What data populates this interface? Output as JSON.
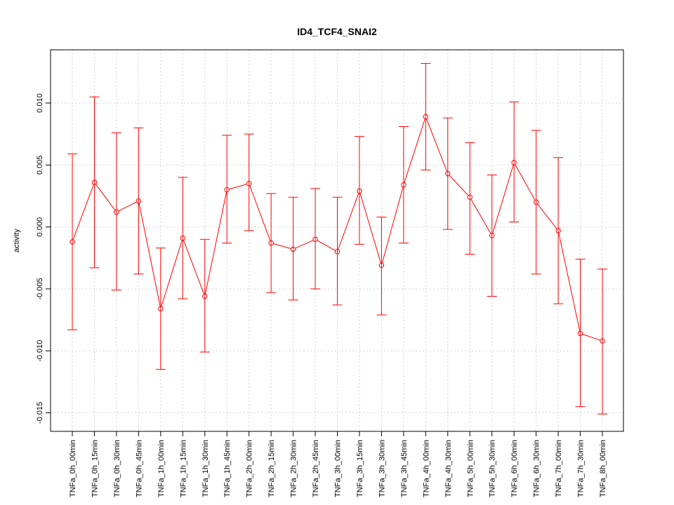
{
  "chart_data": {
    "type": "line",
    "title": "ID4_TCF4_SNAI2",
    "xlabel": "",
    "ylabel": "activity",
    "ylim": [
      -0.0165,
      0.0143
    ],
    "grid": true,
    "legend": "none",
    "colors": {
      "series": "#ff0000",
      "grid": "#d3d3d3",
      "frame": "#000000"
    },
    "y_ticks": [
      -0.015,
      -0.01,
      -0.005,
      0.0,
      0.005,
      0.01
    ],
    "y_tick_labels": [
      "-0.015",
      "-0.010",
      "-0.005",
      "0.000",
      "0.005",
      "0.010"
    ],
    "categories": [
      "TNFa_0h_00min",
      "TNFa_0h_15min",
      "TNFa_0h_30min",
      "TNFa_0h_45min",
      "TNFa_1h_00min",
      "TNFa_1h_15min",
      "TNFa_1h_30min",
      "TNFa_1h_45min",
      "TNFa_2h_00min",
      "TNFa_2h_15min",
      "TNFa_2h_30min",
      "TNFa_2h_45min",
      "TNFa_3h_00min",
      "TNFa_3h_15min",
      "TNFa_3h_30min",
      "TNFa_3h_45min",
      "TNFa_4h_00min",
      "TNFa_4h_30min",
      "TNFa_5h_00min",
      "TNFa_5h_30min",
      "TNFa_6h_00min",
      "TNFa_6h_30min",
      "TNFa_7h_00min",
      "TNFa_7h_30min",
      "TNFa_8h_00min"
    ],
    "series": [
      {
        "values": [
          -0.0012,
          0.0036,
          0.0012,
          0.0021,
          -0.0066,
          -0.0009,
          -0.0056,
          0.003,
          0.0035,
          -0.0013,
          -0.0018,
          -0.001,
          -0.002,
          0.0029,
          -0.0031,
          0.0034,
          0.0089,
          0.0043,
          0.0024,
          -0.0007,
          0.0052,
          0.002,
          -0.0003,
          -0.0086,
          -0.0092
        ],
        "upper": [
          0.0059,
          0.0105,
          0.0076,
          0.008,
          -0.0017,
          0.004,
          -0.001,
          0.0074,
          0.0075,
          0.0027,
          0.0024,
          0.0031,
          0.0024,
          0.0073,
          0.0008,
          0.0081,
          0.0132,
          0.0088,
          0.0068,
          0.0042,
          0.0101,
          0.0078,
          0.0056,
          -0.0026,
          -0.0034
        ],
        "lower": [
          -0.0083,
          -0.0033,
          -0.0051,
          -0.0038,
          -0.0115,
          -0.0058,
          -0.0101,
          -0.0013,
          -0.0003,
          -0.0053,
          -0.0059,
          -0.005,
          -0.0063,
          -0.0014,
          -0.0071,
          -0.0013,
          0.0046,
          -0.0002,
          -0.0022,
          -0.0056,
          0.0004,
          -0.0038,
          -0.0062,
          -0.0145,
          -0.0151
        ]
      }
    ]
  }
}
